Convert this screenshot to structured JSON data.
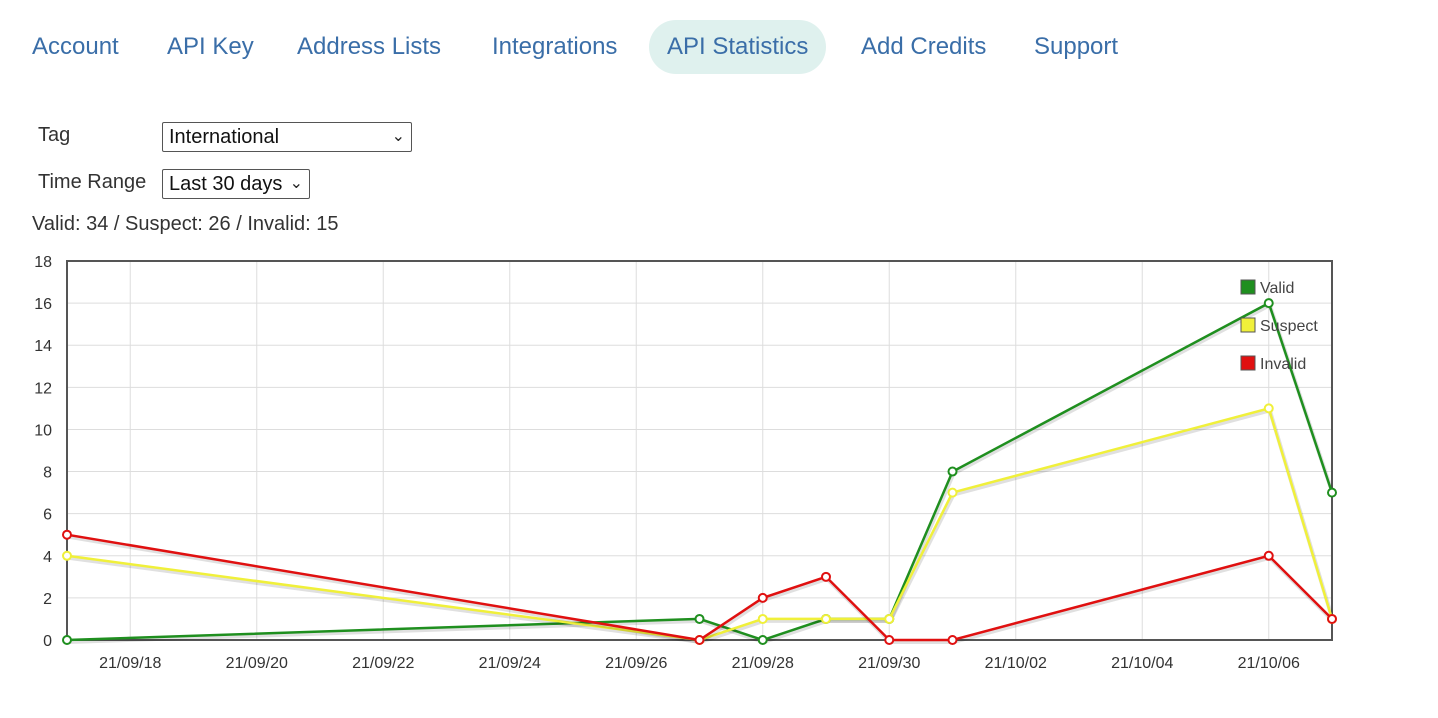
{
  "nav": {
    "tabs": [
      {
        "label": "Account",
        "active": false
      },
      {
        "label": "API Key",
        "active": false
      },
      {
        "label": "Address Lists",
        "active": false
      },
      {
        "label": "Integrations",
        "active": false
      },
      {
        "label": "API Statistics",
        "active": true
      },
      {
        "label": "Add Credits",
        "active": false
      },
      {
        "label": "Support",
        "active": false
      }
    ]
  },
  "form": {
    "tag_label": "Tag",
    "tag_value": "International",
    "time_range_label": "Time Range",
    "time_range_value": "Last 30 days"
  },
  "summary": {
    "valid_label": "Valid:",
    "valid_count": "34",
    "suspect_label": "Suspect:",
    "suspect_count": "26",
    "invalid_label": "Invalid:",
    "invalid_count": "15"
  },
  "colors": {
    "accent": "#3a6ea8",
    "active_tab_bg": "#dff1ee",
    "valid": "#1f8f1f",
    "suspect": "#f0f03a",
    "invalid": "#e01010"
  },
  "chart_data": {
    "type": "line",
    "ylim": [
      0,
      18
    ],
    "y_ticks": [
      0,
      2,
      4,
      6,
      8,
      10,
      12,
      14,
      16,
      18
    ],
    "x_ticks": [
      "21/09/18",
      "21/09/20",
      "21/09/22",
      "21/09/24",
      "21/09/26",
      "21/09/28",
      "21/09/30",
      "21/10/02",
      "21/10/04",
      "21/10/06"
    ],
    "x_range": [
      "2021-09-17",
      "2021-10-07"
    ],
    "grid": true,
    "legend_position": "top-right",
    "series": [
      {
        "name": "Valid",
        "color": "#1f8f1f",
        "points": [
          {
            "x": "2021-09-17",
            "y": 0
          },
          {
            "x": "2021-09-27",
            "y": 1
          },
          {
            "x": "2021-09-28",
            "y": 0
          },
          {
            "x": "2021-09-29",
            "y": 1
          },
          {
            "x": "2021-09-30",
            "y": 1
          },
          {
            "x": "2021-10-01",
            "y": 8
          },
          {
            "x": "2021-10-06",
            "y": 16
          },
          {
            "x": "2021-10-07",
            "y": 7
          }
        ]
      },
      {
        "name": "Suspect",
        "color": "#f0f03a",
        "points": [
          {
            "x": "2021-09-17",
            "y": 4
          },
          {
            "x": "2021-09-27",
            "y": 0
          },
          {
            "x": "2021-09-28",
            "y": 1
          },
          {
            "x": "2021-09-29",
            "y": 1
          },
          {
            "x": "2021-09-30",
            "y": 1
          },
          {
            "x": "2021-10-01",
            "y": 7
          },
          {
            "x": "2021-10-06",
            "y": 11
          },
          {
            "x": "2021-10-07",
            "y": 1
          }
        ]
      },
      {
        "name": "Invalid",
        "color": "#e01010",
        "points": [
          {
            "x": "2021-09-17",
            "y": 5
          },
          {
            "x": "2021-09-27",
            "y": 0
          },
          {
            "x": "2021-09-28",
            "y": 2
          },
          {
            "x": "2021-09-29",
            "y": 3
          },
          {
            "x": "2021-09-30",
            "y": 0
          },
          {
            "x": "2021-10-01",
            "y": 0
          },
          {
            "x": "2021-10-06",
            "y": 4
          },
          {
            "x": "2021-10-07",
            "y": 1
          }
        ]
      }
    ]
  }
}
